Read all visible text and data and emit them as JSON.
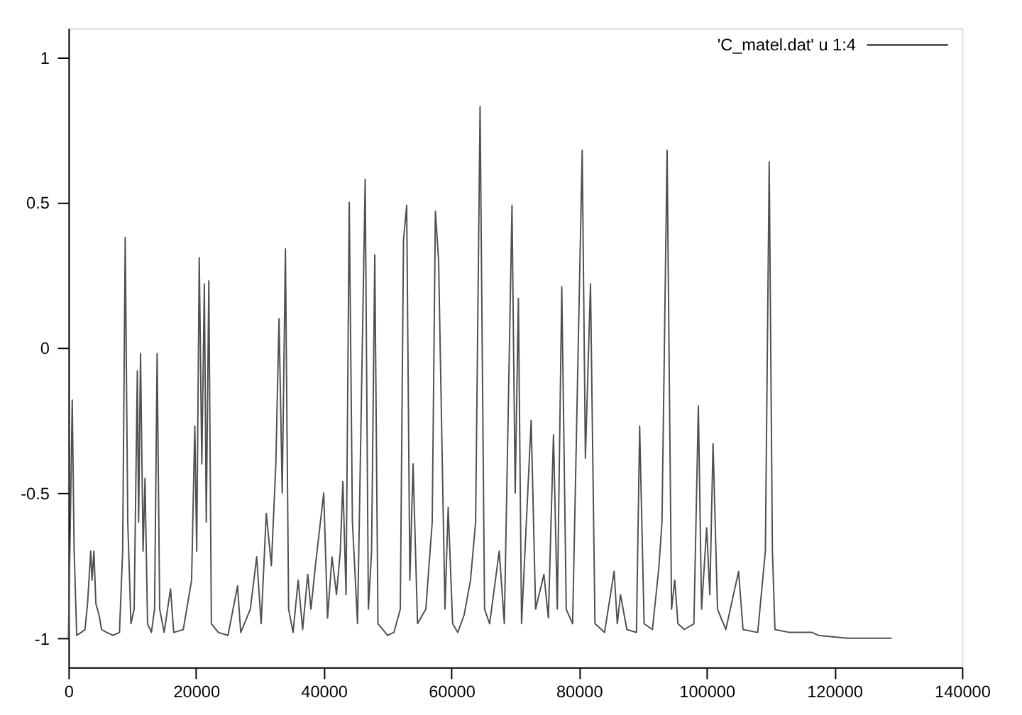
{
  "chart_data": {
    "type": "line",
    "xlim": [
      0,
      140000
    ],
    "ylim": [
      -1.1,
      1.1
    ],
    "xticks": [
      0,
      20000,
      40000,
      60000,
      80000,
      100000,
      120000,
      140000
    ],
    "yticks": [
      -1,
      -0.5,
      0,
      0.5,
      1
    ],
    "grid": false,
    "legend": "top right",
    "marker": "none",
    "line_style": "solid",
    "series": [
      {
        "name": "'C_matel.dat' u 1:4",
        "color": "#505050",
        "x": [
          0,
          300,
          600,
          900,
          1300,
          2000,
          2600,
          3000,
          3500,
          3700,
          4000,
          4300,
          4800,
          5200,
          6000,
          7000,
          8000,
          8500,
          8900,
          9300,
          9800,
          10300,
          10800,
          11000,
          11300,
          11700,
          12000,
          12400,
          13000,
          13500,
          13900,
          14300,
          15000,
          16000,
          16500,
          18000,
          19300,
          19800,
          20100,
          20500,
          20900,
          21300,
          21600,
          22000,
          22400,
          23500,
          25000,
          26500,
          27000,
          28500,
          29500,
          30200,
          31000,
          31800,
          32500,
          33000,
          33500,
          34000,
          34500,
          35200,
          36000,
          36700,
          37500,
          38000,
          38700,
          40000,
          40600,
          41300,
          42000,
          42600,
          43000,
          43500,
          44000,
          44500,
          45300,
          46500,
          47000,
          47500,
          48000,
          48500,
          50000,
          51000,
          52000,
          52500,
          53000,
          53500,
          54000,
          54700,
          56000,
          57000,
          57500,
          58000,
          59000,
          59500,
          60200,
          61000,
          62000,
          63000,
          63800,
          64500,
          65200,
          66000,
          67500,
          68300,
          69500,
          70000,
          70500,
          71000,
          72500,
          73200,
          74500,
          75200,
          76000,
          76600,
          77300,
          78000,
          79000,
          80500,
          81000,
          81800,
          82500,
          84000,
          85500,
          86000,
          86500,
          87500,
          89000,
          89500,
          90200,
          91500,
          92500,
          93000,
          93800,
          94500,
          95000,
          95500,
          96500,
          98000,
          98700,
          99200,
          100000,
          100500,
          101000,
          101700,
          103000,
          105000,
          105700,
          108000,
          109200,
          109800,
          110300,
          110700,
          113000,
          116500,
          117500,
          122000,
          129000
        ],
        "values": [
          -1.0,
          -0.6,
          -0.18,
          -0.7,
          -0.99,
          -0.98,
          -0.97,
          -0.88,
          -0.7,
          -0.8,
          -0.7,
          -0.88,
          -0.92,
          -0.97,
          -0.98,
          -0.99,
          -0.98,
          -0.7,
          0.38,
          -0.6,
          -0.95,
          -0.9,
          -0.08,
          -0.6,
          -0.02,
          -0.7,
          -0.45,
          -0.95,
          -0.98,
          -0.9,
          -0.02,
          -0.9,
          -0.98,
          -0.83,
          -0.98,
          -0.97,
          -0.8,
          -0.27,
          -0.7,
          0.31,
          -0.4,
          0.22,
          -0.6,
          0.23,
          -0.95,
          -0.98,
          -0.99,
          -0.82,
          -0.98,
          -0.9,
          -0.72,
          -0.95,
          -0.57,
          -0.75,
          -0.4,
          0.1,
          -0.5,
          0.34,
          -0.9,
          -0.98,
          -0.8,
          -0.97,
          -0.78,
          -0.9,
          -0.75,
          -0.5,
          -0.93,
          -0.72,
          -0.85,
          -0.7,
          -0.46,
          -0.85,
          0.5,
          -0.6,
          -0.95,
          0.58,
          -0.9,
          -0.7,
          0.32,
          -0.95,
          -0.99,
          -0.98,
          -0.9,
          0.37,
          0.49,
          -0.8,
          -0.4,
          -0.95,
          -0.9,
          -0.6,
          0.47,
          0.3,
          -0.9,
          -0.55,
          -0.95,
          -0.98,
          -0.92,
          -0.8,
          -0.6,
          0.83,
          -0.9,
          -0.95,
          -0.7,
          -0.95,
          0.49,
          -0.5,
          0.17,
          -0.95,
          -0.25,
          -0.9,
          -0.78,
          -0.93,
          -0.3,
          -0.9,
          0.21,
          -0.9,
          -0.95,
          0.68,
          -0.38,
          0.22,
          -0.95,
          -0.98,
          -0.77,
          -0.95,
          -0.85,
          -0.97,
          -0.98,
          -0.27,
          -0.95,
          -0.97,
          -0.76,
          -0.6,
          0.68,
          -0.9,
          -0.8,
          -0.95,
          -0.97,
          -0.95,
          -0.2,
          -0.9,
          -0.62,
          -0.85,
          -0.33,
          -0.9,
          -0.97,
          -0.77,
          -0.97,
          -0.98,
          -0.7,
          0.64,
          -0.7,
          -0.97,
          -0.98,
          -0.98,
          -0.99,
          -1.0,
          -1.0
        ]
      }
    ]
  }
}
